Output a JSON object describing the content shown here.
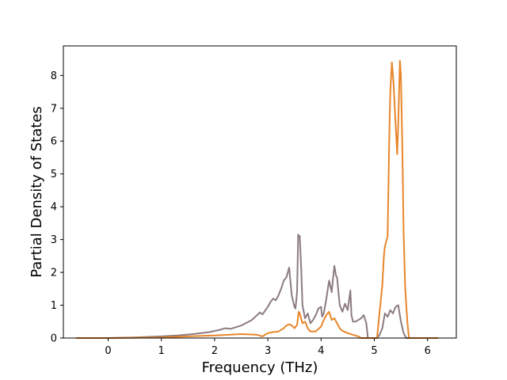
{
  "chart_data": {
    "type": "line",
    "title": "",
    "xlabel": "Frequency (THz)",
    "ylabel": "Partial Density of States",
    "xlim": [
      -0.84,
      6.54
    ],
    "ylim": [
      0,
      8.9
    ],
    "xticks": [
      0,
      1,
      2,
      3,
      4,
      5,
      6
    ],
    "yticks": [
      0,
      1,
      2,
      3,
      4,
      5,
      6,
      7,
      8
    ],
    "grid": false,
    "legend": "none",
    "series": [
      {
        "color": "#8c7b80",
        "x": [
          -0.6,
          0.0,
          0.5,
          1.0,
          1.3,
          1.6,
          1.9,
          2.1,
          2.2,
          2.3,
          2.5,
          2.7,
          2.8,
          2.85,
          2.9,
          3.0,
          3.05,
          3.1,
          3.15,
          3.2,
          3.25,
          3.3,
          3.35,
          3.4,
          3.45,
          3.5,
          3.52,
          3.55,
          3.57,
          3.6,
          3.63,
          3.65,
          3.7,
          3.75,
          3.8,
          3.85,
          3.9,
          3.95,
          4.0,
          4.02,
          4.05,
          4.1,
          4.15,
          4.2,
          4.22,
          4.25,
          4.28,
          4.3,
          4.35,
          4.4,
          4.45,
          4.5,
          4.55,
          4.57,
          4.6,
          4.65,
          4.7,
          4.75,
          4.8,
          4.85,
          4.88,
          5.05,
          5.1,
          5.15,
          5.2,
          5.25,
          5.3,
          5.35,
          5.4,
          5.45,
          5.5,
          5.55,
          5.6,
          5.65,
          5.7,
          6.2
        ],
        "y": [
          0.0,
          0.0,
          0.02,
          0.05,
          0.08,
          0.12,
          0.18,
          0.25,
          0.3,
          0.28,
          0.38,
          0.55,
          0.7,
          0.78,
          0.72,
          0.95,
          1.1,
          1.2,
          1.15,
          1.3,
          1.5,
          1.75,
          1.85,
          2.15,
          1.3,
          0.95,
          0.9,
          1.4,
          3.15,
          3.1,
          2.0,
          1.0,
          0.6,
          0.75,
          0.45,
          0.55,
          0.7,
          0.9,
          0.95,
          0.65,
          0.75,
          1.2,
          1.75,
          1.4,
          1.75,
          2.2,
          1.9,
          1.85,
          1.0,
          0.8,
          1.05,
          0.85,
          1.45,
          0.7,
          0.5,
          0.5,
          0.55,
          0.6,
          0.7,
          0.45,
          0.0,
          0.0,
          0.1,
          0.3,
          0.75,
          0.65,
          0.85,
          0.75,
          0.95,
          1.0,
          0.5,
          0.15,
          0.0,
          0.0,
          0.0,
          0.0
        ]
      },
      {
        "color": "#e8862a",
        "x": [
          -0.6,
          0.0,
          1.0,
          1.5,
          2.0,
          2.5,
          2.8,
          2.9,
          3.0,
          3.1,
          3.2,
          3.3,
          3.35,
          3.4,
          3.45,
          3.5,
          3.55,
          3.58,
          3.6,
          3.65,
          3.7,
          3.75,
          3.8,
          3.9,
          4.0,
          4.05,
          4.1,
          4.15,
          4.2,
          4.25,
          4.3,
          4.35,
          4.4,
          4.5,
          4.6,
          4.7,
          4.75,
          5.05,
          5.1,
          5.15,
          5.18,
          5.2,
          5.25,
          5.28,
          5.3,
          5.33,
          5.36,
          5.4,
          5.43,
          5.45,
          5.48,
          5.5,
          5.53,
          5.55,
          5.58,
          5.62,
          5.65,
          6.2
        ],
        "y": [
          0.0,
          0.0,
          0.02,
          0.05,
          0.08,
          0.12,
          0.1,
          0.05,
          0.15,
          0.18,
          0.2,
          0.3,
          0.38,
          0.42,
          0.38,
          0.3,
          0.4,
          0.8,
          0.75,
          0.45,
          0.5,
          0.3,
          0.2,
          0.2,
          0.35,
          0.55,
          0.7,
          0.8,
          0.55,
          0.6,
          0.45,
          0.3,
          0.22,
          0.15,
          0.1,
          0.05,
          0.0,
          0.0,
          0.8,
          1.6,
          2.5,
          2.8,
          3.1,
          6.0,
          7.5,
          8.4,
          7.8,
          6.5,
          5.6,
          6.5,
          8.45,
          8.0,
          5.5,
          3.2,
          1.5,
          0.5,
          0.0,
          0.0
        ]
      }
    ]
  }
}
